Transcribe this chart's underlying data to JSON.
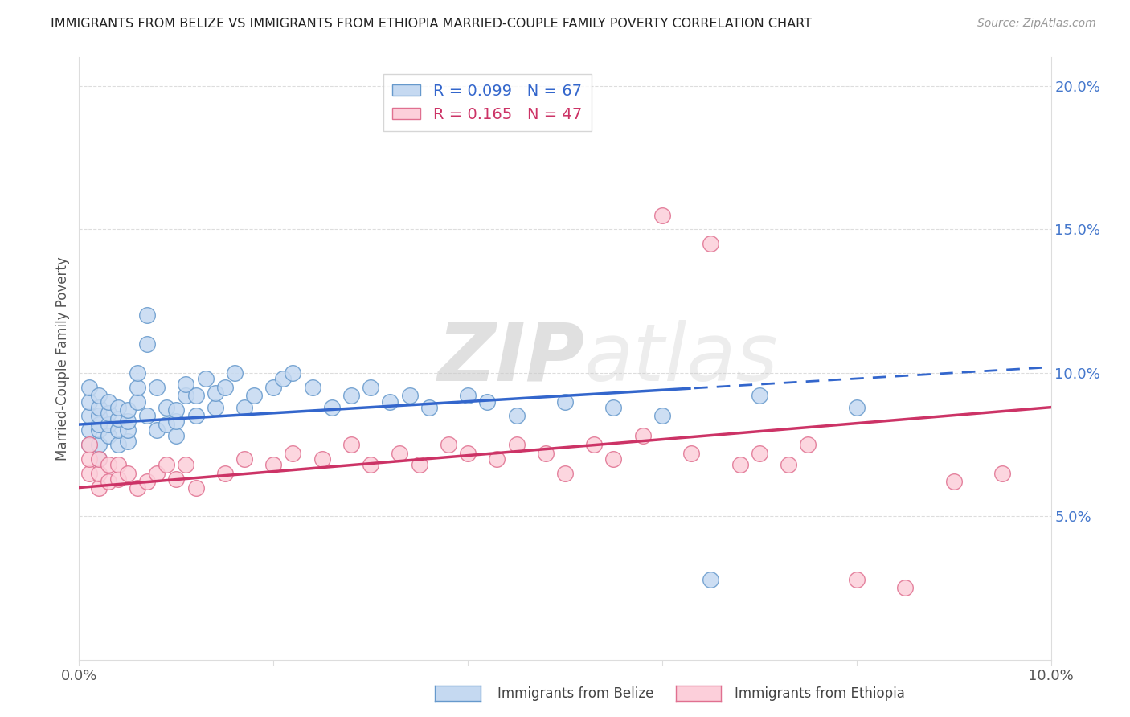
{
  "title": "IMMIGRANTS FROM BELIZE VS IMMIGRANTS FROM ETHIOPIA MARRIED-COUPLE FAMILY POVERTY CORRELATION CHART",
  "source": "Source: ZipAtlas.com",
  "ylabel": "Married-Couple Family Poverty",
  "xlim": [
    0.0,
    0.1
  ],
  "ylim": [
    0.0,
    0.21
  ],
  "belize_color": "#c5d9f1",
  "belize_edge": "#6699cc",
  "ethiopia_color": "#fccfda",
  "ethiopia_edge": "#e07090",
  "trend_belize_color": "#3366cc",
  "trend_ethiopia_color": "#cc3366",
  "R_belize": 0.099,
  "N_belize": 67,
  "R_ethiopia": 0.165,
  "N_ethiopia": 47,
  "watermark": "ZIPatlas",
  "belize_intercept": 0.082,
  "belize_slope": 0.2,
  "ethiopia_intercept": 0.06,
  "ethiopia_slope": 0.28,
  "belize_x": [
    0.001,
    0.001,
    0.001,
    0.001,
    0.001,
    0.002,
    0.002,
    0.002,
    0.002,
    0.002,
    0.002,
    0.002,
    0.003,
    0.003,
    0.003,
    0.003,
    0.004,
    0.004,
    0.004,
    0.004,
    0.005,
    0.005,
    0.005,
    0.005,
    0.006,
    0.006,
    0.006,
    0.007,
    0.007,
    0.007,
    0.008,
    0.008,
    0.009,
    0.009,
    0.01,
    0.01,
    0.01,
    0.011,
    0.011,
    0.012,
    0.012,
    0.013,
    0.014,
    0.014,
    0.015,
    0.016,
    0.017,
    0.018,
    0.02,
    0.021,
    0.022,
    0.024,
    0.026,
    0.028,
    0.03,
    0.032,
    0.034,
    0.036,
    0.04,
    0.042,
    0.045,
    0.05,
    0.055,
    0.06,
    0.065,
    0.07,
    0.08
  ],
  "belize_y": [
    0.075,
    0.08,
    0.085,
    0.09,
    0.095,
    0.07,
    0.075,
    0.08,
    0.082,
    0.085,
    0.088,
    0.092,
    0.078,
    0.082,
    0.086,
    0.09,
    0.075,
    0.08,
    0.084,
    0.088,
    0.076,
    0.08,
    0.083,
    0.087,
    0.09,
    0.095,
    0.1,
    0.085,
    0.11,
    0.12,
    0.08,
    0.095,
    0.082,
    0.088,
    0.078,
    0.083,
    0.087,
    0.092,
    0.096,
    0.085,
    0.092,
    0.098,
    0.088,
    0.093,
    0.095,
    0.1,
    0.088,
    0.092,
    0.095,
    0.098,
    0.1,
    0.095,
    0.088,
    0.092,
    0.095,
    0.09,
    0.092,
    0.088,
    0.092,
    0.09,
    0.085,
    0.09,
    0.088,
    0.085,
    0.028,
    0.092,
    0.088
  ],
  "ethiopia_x": [
    0.001,
    0.001,
    0.001,
    0.002,
    0.002,
    0.002,
    0.003,
    0.003,
    0.004,
    0.004,
    0.005,
    0.006,
    0.007,
    0.008,
    0.009,
    0.01,
    0.011,
    0.012,
    0.015,
    0.017,
    0.02,
    0.022,
    0.025,
    0.028,
    0.03,
    0.033,
    0.035,
    0.038,
    0.04,
    0.043,
    0.045,
    0.048,
    0.05,
    0.053,
    0.055,
    0.058,
    0.06,
    0.063,
    0.065,
    0.068,
    0.07,
    0.073,
    0.075,
    0.08,
    0.085,
    0.09,
    0.095
  ],
  "ethiopia_y": [
    0.065,
    0.07,
    0.075,
    0.06,
    0.065,
    0.07,
    0.062,
    0.068,
    0.063,
    0.068,
    0.065,
    0.06,
    0.062,
    0.065,
    0.068,
    0.063,
    0.068,
    0.06,
    0.065,
    0.07,
    0.068,
    0.072,
    0.07,
    0.075,
    0.068,
    0.072,
    0.068,
    0.075,
    0.072,
    0.07,
    0.075,
    0.072,
    0.065,
    0.075,
    0.07,
    0.078,
    0.155,
    0.072,
    0.145,
    0.068,
    0.072,
    0.068,
    0.075,
    0.028,
    0.025,
    0.062,
    0.065
  ]
}
